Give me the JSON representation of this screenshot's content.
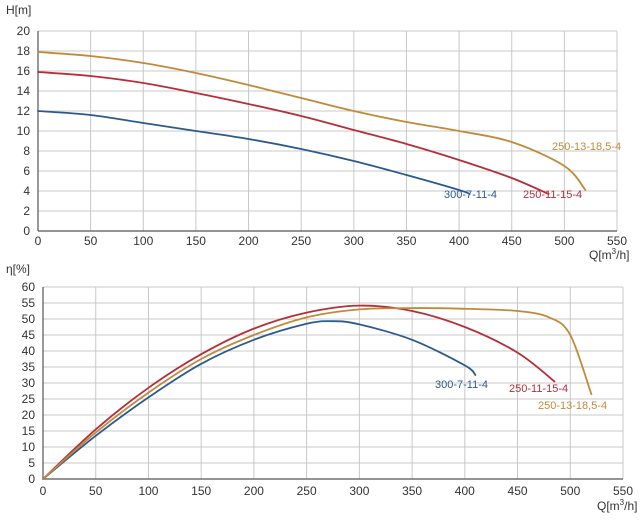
{
  "chart_data": [
    {
      "type": "line",
      "ylabel": "H[m]",
      "xlabel": "Q[m³/h]",
      "xlabel_parts": [
        "Q[m",
        "3",
        "/h]"
      ],
      "xlim": [
        0,
        550
      ],
      "ylim": [
        0,
        20
      ],
      "xticks": [
        0,
        50,
        100,
        150,
        200,
        250,
        300,
        350,
        400,
        450,
        500,
        550
      ],
      "yticks": [
        0,
        2,
        4,
        6,
        8,
        10,
        12,
        14,
        16,
        18,
        20
      ],
      "grid": true,
      "series": [
        {
          "name": "300-7-11-4",
          "color": "#2b5a8e",
          "points": [
            [
              0,
              12.0
            ],
            [
              50,
              11.6
            ],
            [
              100,
              10.8
            ],
            [
              150,
              10.0
            ],
            [
              200,
              9.2
            ],
            [
              250,
              8.2
            ],
            [
              300,
              7.0
            ],
            [
              350,
              5.6
            ],
            [
              400,
              4.1
            ],
            [
              410,
              3.7
            ]
          ]
        },
        {
          "name": "250-11-15-4",
          "color": "#b52e3a",
          "points": [
            [
              0,
              15.9
            ],
            [
              50,
              15.5
            ],
            [
              100,
              14.8
            ],
            [
              150,
              13.8
            ],
            [
              200,
              12.7
            ],
            [
              250,
              11.5
            ],
            [
              300,
              10.1
            ],
            [
              350,
              8.7
            ],
            [
              400,
              7.1
            ],
            [
              450,
              5.3
            ],
            [
              485,
              3.7
            ]
          ]
        },
        {
          "name": "250-13-18,5-4",
          "color": "#c08a3a",
          "points": [
            [
              0,
              17.9
            ],
            [
              50,
              17.5
            ],
            [
              100,
              16.8
            ],
            [
              150,
              15.8
            ],
            [
              200,
              14.6
            ],
            [
              250,
              13.3
            ],
            [
              300,
              12.0
            ],
            [
              350,
              10.9
            ],
            [
              400,
              10.0
            ],
            [
              450,
              8.9
            ],
            [
              500,
              6.5
            ],
            [
              520,
              4.1
            ]
          ]
        }
      ]
    },
    {
      "type": "line",
      "ylabel": "η[%]",
      "xlabel": "Q[m³/h]",
      "xlabel_parts": [
        "Q[m",
        "3",
        "/h]"
      ],
      "xlim": [
        0,
        550
      ],
      "ylim": [
        0,
        60
      ],
      "xticks": [
        0,
        50,
        100,
        150,
        200,
        250,
        300,
        350,
        400,
        450,
        500,
        550
      ],
      "yticks": [
        0,
        5,
        10,
        15,
        20,
        25,
        30,
        35,
        40,
        45,
        50,
        55,
        60
      ],
      "grid": true,
      "series": [
        {
          "name": "300-7-11-4",
          "color": "#2b5a8e",
          "points": [
            [
              0,
              0
            ],
            [
              50,
              13.5
            ],
            [
              100,
              25.5
            ],
            [
              150,
              36
            ],
            [
              200,
              43.5
            ],
            [
              250,
              48.5
            ],
            [
              275,
              49.3
            ],
            [
              300,
              48.3
            ],
            [
              350,
              43.5
            ],
            [
              400,
              35.5
            ],
            [
              410,
              32.5
            ]
          ]
        },
        {
          "name": "250-11-15-4",
          "color": "#b52e3a",
          "points": [
            [
              0,
              0
            ],
            [
              50,
              15.5
            ],
            [
              100,
              28.5
            ],
            [
              150,
              39
            ],
            [
              200,
              47
            ],
            [
              250,
              52
            ],
            [
              300,
              54.2
            ],
            [
              350,
              52.5
            ],
            [
              400,
              47.5
            ],
            [
              450,
              39.5
            ],
            [
              485,
              30.5
            ]
          ]
        },
        {
          "name": "250-13-18,5-4",
          "color": "#c08a3a",
          "points": [
            [
              0,
              0
            ],
            [
              50,
              14.5
            ],
            [
              100,
              27
            ],
            [
              150,
              37.5
            ],
            [
              200,
              45
            ],
            [
              250,
              50.5
            ],
            [
              300,
              53
            ],
            [
              350,
              53.4
            ],
            [
              400,
              53.2
            ],
            [
              450,
              52.5
            ],
            [
              480,
              50.5
            ],
            [
              500,
              45
            ],
            [
              520,
              26.5
            ]
          ]
        }
      ]
    }
  ]
}
